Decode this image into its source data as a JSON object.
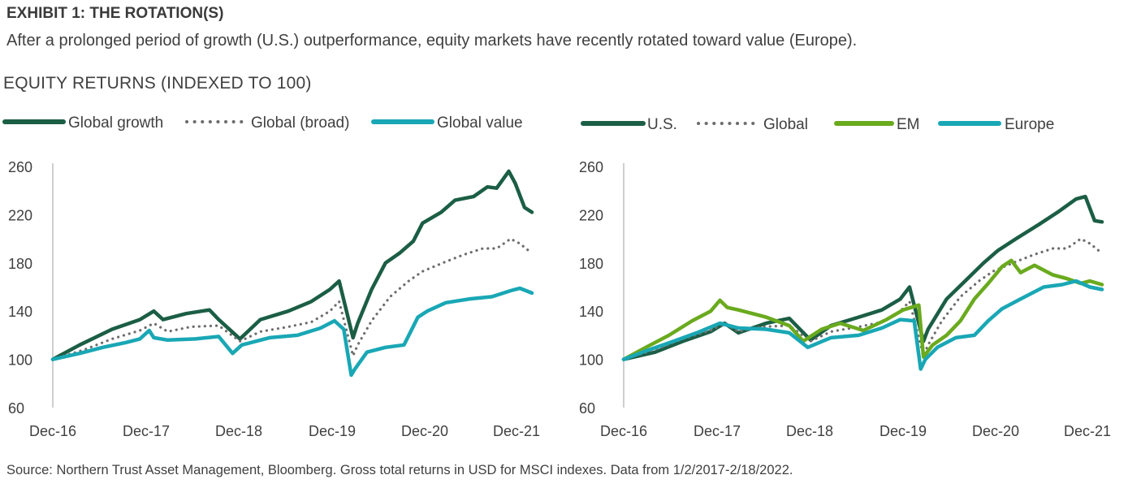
{
  "header": {
    "exhibit_title": "EXHIBIT 1: THE ROTATION(S)",
    "subtitle": "After a prolonged period of growth (U.S.) outperformance, equity markets have recently rotated toward value (Europe).",
    "section_title": "EQUITY RETURNS (INDEXED TO 100)"
  },
  "footer": {
    "source": "Source: Northern Trust Asset Management, Bloomberg. Gross total returns in USD for MSCI indexes. Data from 1/2/2017-2/18/2022."
  },
  "colors": {
    "dark_green": "#1b5e45",
    "gray_dots": "#6d6d6d",
    "teal": "#19a7b5",
    "light_green": "#6aaa1e",
    "axis": "#bfbfbf"
  },
  "chart_data": [
    {
      "type": "line",
      "x_tick_labels": [
        "Dec-16",
        "Dec-17",
        "Dec-18",
        "Dec-19",
        "Dec-20",
        "Dec-21"
      ],
      "x_range": [
        2016.96,
        2022.13
      ],
      "ylim": [
        60,
        260
      ],
      "y_ticks": [
        60,
        100,
        140,
        180,
        220,
        260
      ],
      "legend_position": "top",
      "series": [
        {
          "name": "Global growth",
          "color": "#1b5e45",
          "style": "solid",
          "x": [
            2016.96,
            2017.25,
            2017.6,
            2017.9,
            2018.05,
            2018.15,
            2018.4,
            2018.65,
            2018.75,
            2018.98,
            2019.2,
            2019.5,
            2019.75,
            2019.95,
            2020.05,
            2020.2,
            2020.25,
            2020.4,
            2020.55,
            2020.7,
            2020.85,
            2020.95,
            2021.15,
            2021.3,
            2021.5,
            2021.65,
            2021.75,
            2021.88,
            2021.95,
            2022.05,
            2022.13
          ],
          "y": [
            100,
            112,
            125,
            133,
            140,
            133,
            138,
            141,
            133,
            117,
            133,
            140,
            148,
            158,
            165,
            118,
            130,
            158,
            180,
            188,
            198,
            213,
            222,
            232,
            235,
            243,
            242,
            256,
            246,
            226,
            222
          ]
        },
        {
          "name": "Global (broad)",
          "color": "#6d6d6d",
          "style": "dotted",
          "x": [
            2016.96,
            2017.3,
            2017.6,
            2017.9,
            2018.05,
            2018.2,
            2018.45,
            2018.75,
            2018.98,
            2019.2,
            2019.5,
            2019.75,
            2019.95,
            2020.05,
            2020.2,
            2020.25,
            2020.4,
            2020.6,
            2020.8,
            2020.95,
            2021.2,
            2021.4,
            2021.6,
            2021.75,
            2021.9,
            2022.0,
            2022.13
          ],
          "y": [
            100,
            108,
            117,
            124,
            130,
            123,
            127,
            128,
            115,
            123,
            127,
            131,
            140,
            148,
            103,
            112,
            132,
            152,
            165,
            173,
            181,
            187,
            192,
            192,
            200,
            196,
            188
          ]
        },
        {
          "name": "Global value",
          "color": "#19a7b5",
          "style": "solid",
          "x": [
            2016.96,
            2017.25,
            2017.5,
            2017.75,
            2017.9,
            2018.0,
            2018.05,
            2018.2,
            2018.5,
            2018.75,
            2018.9,
            2019.0,
            2019.3,
            2019.6,
            2019.85,
            2020.0,
            2020.1,
            2020.18,
            2020.22,
            2020.35,
            2020.55,
            2020.75,
            2020.9,
            2021.0,
            2021.2,
            2021.45,
            2021.7,
            2021.9,
            2022.0,
            2022.13
          ],
          "y": [
            100,
            105,
            110,
            114,
            117,
            124,
            118,
            116,
            117,
            119,
            105,
            112,
            118,
            120,
            126,
            132,
            125,
            87,
            92,
            106,
            110,
            112,
            135,
            140,
            147,
            150,
            152,
            157,
            159,
            155
          ]
        }
      ]
    },
    {
      "type": "line",
      "x_tick_labels": [
        "Dec-16",
        "Dec-17",
        "Dec-18",
        "Dec-19",
        "Dec-20",
        "Dec-21"
      ],
      "x_range": [
        2016.96,
        2022.13
      ],
      "ylim": [
        60,
        260
      ],
      "y_ticks": [
        60,
        100,
        140,
        180,
        220,
        260
      ],
      "legend_position": "top",
      "series": [
        {
          "name": "U.S.",
          "color": "#1b5e45",
          "style": "solid",
          "x": [
            2016.96,
            2017.3,
            2017.6,
            2017.9,
            2018.05,
            2018.2,
            2018.5,
            2018.75,
            2018.98,
            2019.2,
            2019.5,
            2019.75,
            2019.95,
            2020.05,
            2020.2,
            2020.25,
            2020.45,
            2020.65,
            2020.85,
            2021.0,
            2021.2,
            2021.45,
            2021.65,
            2021.85,
            2021.95,
            2022.05,
            2022.13
          ],
          "y": [
            100,
            106,
            115,
            123,
            130,
            122,
            130,
            134,
            116,
            128,
            135,
            141,
            150,
            160,
            115,
            125,
            150,
            165,
            180,
            190,
            200,
            212,
            222,
            233,
            235,
            215,
            214
          ]
        },
        {
          "name": "Global",
          "color": "#6d6d6d",
          "style": "dotted",
          "x": [
            2016.96,
            2017.3,
            2017.6,
            2017.9,
            2018.05,
            2018.2,
            2018.45,
            2018.75,
            2018.98,
            2019.2,
            2019.5,
            2019.75,
            2019.95,
            2020.05,
            2020.2,
            2020.25,
            2020.4,
            2020.6,
            2020.8,
            2020.95,
            2021.2,
            2021.4,
            2021.6,
            2021.75,
            2021.9,
            2022.0,
            2022.13
          ],
          "y": [
            100,
            108,
            117,
            124,
            130,
            123,
            127,
            128,
            115,
            123,
            127,
            131,
            140,
            148,
            103,
            112,
            132,
            152,
            165,
            173,
            181,
            187,
            192,
            192,
            200,
            196,
            188
          ]
        },
        {
          "name": "EM",
          "color": "#6aaa1e",
          "style": "solid",
          "x": [
            2016.96,
            2017.2,
            2017.45,
            2017.7,
            2017.9,
            2018.0,
            2018.08,
            2018.2,
            2018.5,
            2018.75,
            2018.9,
            2019.1,
            2019.3,
            2019.55,
            2019.8,
            2019.98,
            2020.15,
            2020.2,
            2020.3,
            2020.45,
            2020.6,
            2020.75,
            2020.9,
            2021.05,
            2021.15,
            2021.25,
            2021.4,
            2021.6,
            2021.75,
            2021.9,
            2022.0,
            2022.13
          ],
          "y": [
            100,
            110,
            120,
            132,
            140,
            149,
            143,
            141,
            135,
            128,
            115,
            125,
            130,
            124,
            133,
            141,
            145,
            102,
            112,
            120,
            132,
            150,
            163,
            177,
            182,
            172,
            178,
            170,
            167,
            163,
            165,
            162
          ]
        },
        {
          "name": "Europe",
          "color": "#19a7b5",
          "style": "solid",
          "x": [
            2016.96,
            2017.2,
            2017.5,
            2017.75,
            2018.0,
            2018.2,
            2018.5,
            2018.75,
            2018.95,
            2019.2,
            2019.5,
            2019.75,
            2019.95,
            2020.1,
            2020.17,
            2020.22,
            2020.35,
            2020.55,
            2020.75,
            2020.9,
            2021.05,
            2021.25,
            2021.5,
            2021.7,
            2021.85,
            2022.0,
            2022.13
          ],
          "y": [
            100,
            107,
            115,
            122,
            130,
            126,
            125,
            122,
            110,
            118,
            120,
            126,
            133,
            132,
            92,
            100,
            110,
            118,
            120,
            132,
            142,
            150,
            160,
            162,
            165,
            160,
            158
          ]
        }
      ]
    }
  ]
}
